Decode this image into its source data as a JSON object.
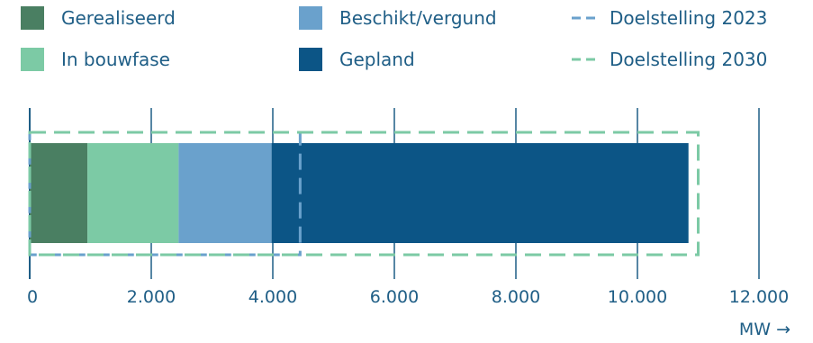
{
  "chart_data": {
    "type": "bar",
    "orientation": "horizontal",
    "stacked": true,
    "categories": [
      ""
    ],
    "series": [
      {
        "name": "Gerealiseerd",
        "values": [
          950
        ],
        "color": "#4a7f62"
      },
      {
        "name": "In bouwfase",
        "values": [
          1500
        ],
        "color": "#7ccaa5"
      },
      {
        "name": "Beschikt/vergund",
        "values": [
          1530
        ],
        "color": "#6aa1cc"
      },
      {
        "name": "Gepland",
        "values": [
          6860
        ],
        "color": "#0c5586"
      }
    ],
    "targets": [
      {
        "name": "Doelstelling 2023",
        "value": 4450,
        "color": "#6aa1cc",
        "style": "dashed"
      },
      {
        "name": "Doelstelling 2030",
        "value": 11000,
        "color": "#7ccaa5",
        "style": "dashed"
      }
    ],
    "xlim": [
      0,
      12000
    ],
    "xticks": [
      0,
      2000,
      4000,
      6000,
      8000,
      10000,
      12000
    ],
    "xtick_labels": [
      "0",
      "2.000",
      "4.000",
      "6.000",
      "8.000",
      "10.000",
      "12.000"
    ],
    "xlabel": "MW →",
    "ylabel": "",
    "grid": "vertical",
    "legend_position": "top",
    "text_color": "#1f5e86",
    "grid_color": "#1f5e86"
  }
}
